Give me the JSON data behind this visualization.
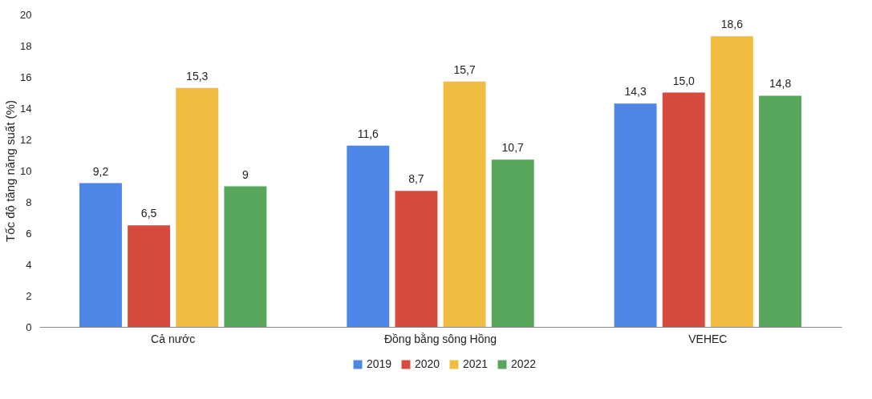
{
  "chart_data": {
    "type": "bar",
    "ylabel": "Tốc độ tăng năng suất (%)",
    "categories": [
      "Cả nước",
      "Đồng bằng sông Hồng",
      "VEHEC"
    ],
    "series": [
      {
        "name": "2019",
        "color": "#4e86e8",
        "values": [
          9.2,
          11.6,
          14.3
        ],
        "value_labels": [
          "9,2",
          "11,6",
          "14,3"
        ]
      },
      {
        "name": "2020",
        "color": "#d64b3e",
        "values": [
          6.5,
          8.7,
          15.0
        ],
        "value_labels": [
          "6,5",
          "8,7",
          "15,0"
        ]
      },
      {
        "name": "2021",
        "color": "#f0bd41",
        "values": [
          15.3,
          15.7,
          18.6
        ],
        "value_labels": [
          "15,3",
          "15,7",
          "18,6"
        ]
      },
      {
        "name": "2022",
        "color": "#58a55c",
        "values": [
          9,
          10.7,
          14.8
        ],
        "value_labels": [
          "9",
          "10,7",
          "14,8"
        ]
      }
    ],
    "ylim": [
      0,
      20
    ],
    "yticks": [
      0,
      2,
      4,
      6,
      8,
      10,
      12,
      14,
      16,
      18,
      20
    ],
    "grid": false,
    "legend": "bottom"
  }
}
